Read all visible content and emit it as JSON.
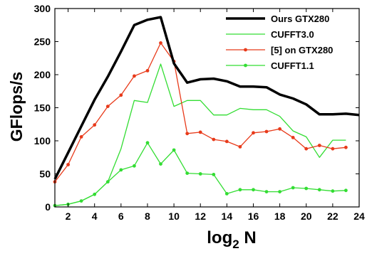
{
  "chart_data": {
    "type": "line",
    "xlabel": "log",
    "xlabel_sub": "2",
    "xlabel_suffix": " N",
    "ylabel": "GFlops/s",
    "xlim": [
      1,
      24
    ],
    "ylim": [
      0,
      300
    ],
    "xticks": [
      2,
      4,
      6,
      8,
      10,
      12,
      14,
      16,
      18,
      20,
      22,
      24
    ],
    "yticks": [
      0,
      50,
      100,
      150,
      200,
      250,
      300
    ],
    "legend_position": "top-right",
    "grid": false,
    "series": [
      {
        "name": "Ours GTX280",
        "color": "#000000",
        "style": "thick-line",
        "x": [
          1,
          2,
          3,
          4,
          5,
          6,
          7,
          8,
          9,
          10,
          11,
          12,
          13,
          14,
          15,
          16,
          17,
          18,
          19,
          20,
          21,
          22,
          23,
          24
        ],
        "values": [
          42,
          82,
          122,
          162,
          197,
          235,
          275,
          283,
          287,
          217,
          188,
          193,
          194,
          190,
          182,
          182,
          181,
          170,
          164,
          155,
          140,
          140,
          141,
          139
        ]
      },
      {
        "name": "CUFFT3.0",
        "color": "#33dd33",
        "style": "line",
        "x": [
          1,
          2,
          3,
          4,
          5,
          6,
          7,
          8,
          9,
          10,
          11,
          12,
          13,
          14,
          15,
          16,
          17,
          18,
          19,
          20,
          21,
          22,
          23
        ],
        "values": [
          2,
          4,
          9,
          19,
          38,
          88,
          161,
          158,
          216,
          152,
          161,
          161,
          139,
          139,
          149,
          147,
          147,
          137,
          115,
          106,
          75,
          101,
          101
        ]
      },
      {
        "name": "[5] on GTX280",
        "color": "#e83a1a",
        "style": "line-dots",
        "x": [
          1,
          2,
          3,
          4,
          5,
          6,
          7,
          8,
          9,
          10,
          11,
          12,
          13,
          14,
          15,
          16,
          17,
          18,
          19,
          20,
          21,
          22,
          23
        ],
        "values": [
          38,
          64,
          106,
          124,
          152,
          169,
          198,
          206,
          248,
          220,
          111,
          113,
          102,
          99,
          91,
          112,
          114,
          118,
          105,
          88,
          93,
          88,
          90
        ]
      },
      {
        "name": "CUFFT1.1",
        "color": "#33dd33",
        "style": "line-dots",
        "x": [
          1,
          2,
          3,
          4,
          5,
          6,
          7,
          8,
          9,
          10,
          11,
          12,
          13,
          14,
          15,
          16,
          17,
          18,
          19,
          20,
          21,
          22,
          23
        ],
        "values": [
          2,
          4,
          9,
          19,
          38,
          56,
          62,
          97,
          65,
          86,
          51,
          50,
          49,
          20,
          26,
          26,
          23,
          23,
          29,
          28,
          26,
          24,
          25
        ]
      }
    ]
  }
}
